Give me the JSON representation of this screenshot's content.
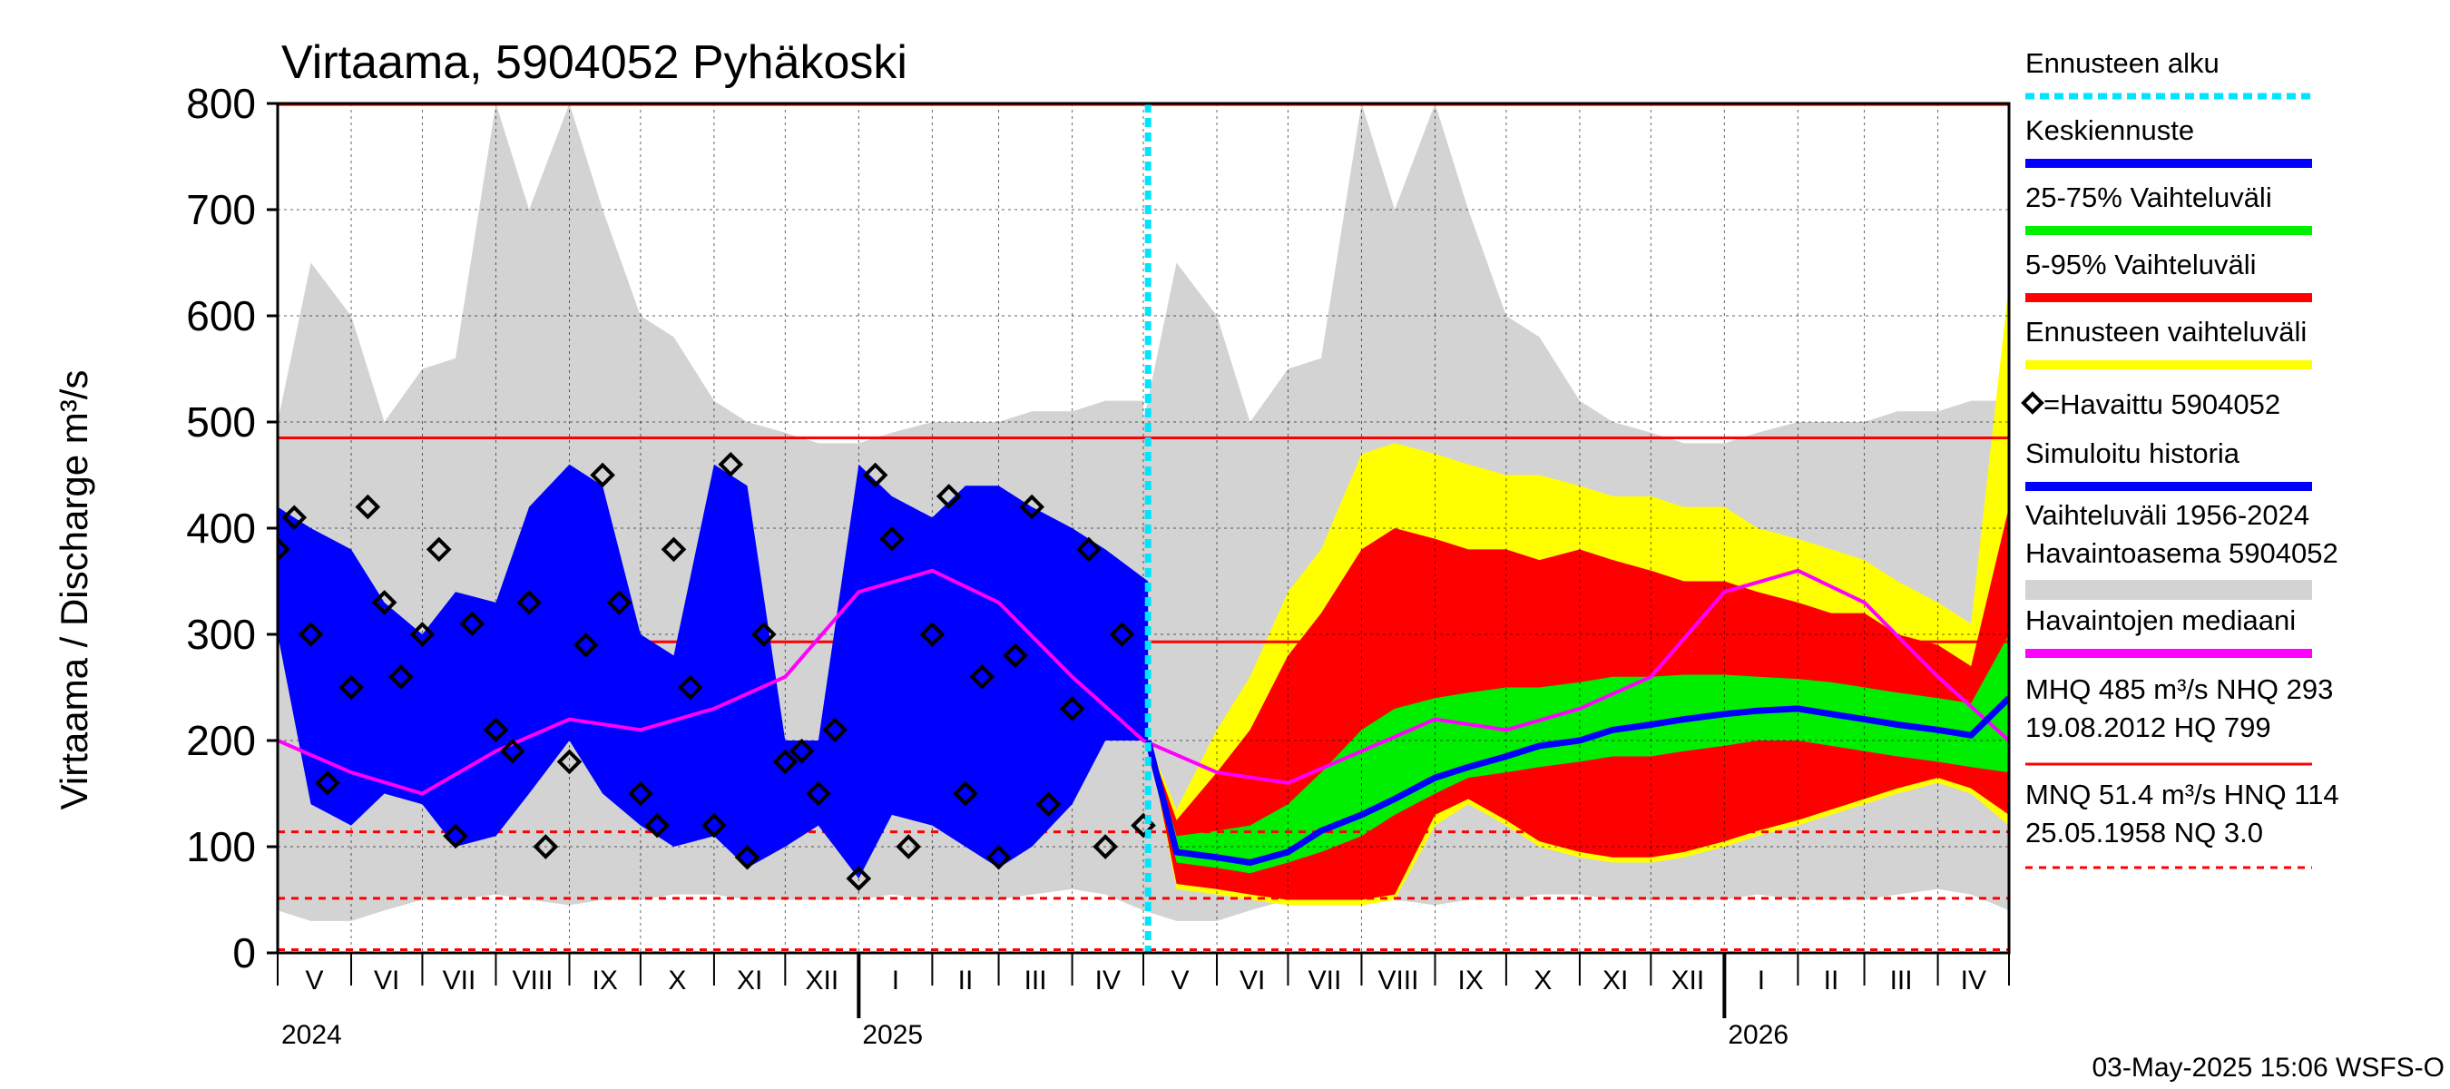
{
  "colors": {
    "history_band": "#d3d3d3",
    "forecast_range": "#ffff00",
    "p5_95": "#ff0000",
    "p25_75": "#00ee00",
    "mean_forecast": "#0000ff",
    "simulated": "#0000ff",
    "median": "#ff00ff",
    "forecast_start": "#00e5ff",
    "observed": "#000000",
    "ref_lines": "#ff0000"
  },
  "chart_data": {
    "type": "line",
    "title": "Virtaama, 5904052 Pyhäkoski",
    "ylabel": "Virtaama / Discharge    m³/s",
    "ylim": [
      0,
      800
    ],
    "yticks": [
      0,
      100,
      200,
      300,
      400,
      500,
      600,
      700,
      800
    ],
    "x_start": "2024-05-01",
    "x_end": "2026-05-01",
    "forecast_start": "2025-05-03",
    "month_labels": [
      "V",
      "VI",
      "VII",
      "VIII",
      "IX",
      "X",
      "XI",
      "XII",
      "I",
      "II",
      "III",
      "IV",
      "V",
      "VI",
      "VII",
      "VIII",
      "IX",
      "X",
      "XI",
      "XII",
      "I",
      "II",
      "III",
      "IV"
    ],
    "year_labels": [
      {
        "label": "2024",
        "date": "2024-05-01"
      },
      {
        "label": "2025",
        "date": "2025-01-01"
      },
      {
        "label": "2026",
        "date": "2026-01-01"
      }
    ],
    "reference_lines": [
      {
        "name": "HQ",
        "value": 799,
        "style": "solid"
      },
      {
        "name": "MHQ",
        "value": 485,
        "style": "solid"
      },
      {
        "name": "NHQ",
        "value": 293,
        "style": "solid"
      },
      {
        "name": "HNQ",
        "value": 114,
        "style": "dashed"
      },
      {
        "name": "MNQ",
        "value": 51.4,
        "style": "dashed"
      },
      {
        "name": "NQ",
        "value": 3.0,
        "style": "dashed"
      }
    ],
    "history_band": {
      "dates": [
        "2024-05-01",
        "2024-05-15",
        "2024-06-01",
        "2024-06-15",
        "2024-07-01",
        "2024-07-15",
        "2024-08-01",
        "2024-08-15",
        "2024-09-01",
        "2024-09-15",
        "2024-10-01",
        "2024-10-15",
        "2024-11-01",
        "2024-11-15",
        "2024-12-01",
        "2024-12-15",
        "2025-01-01",
        "2025-01-15",
        "2025-02-01",
        "2025-02-15",
        "2025-03-01",
        "2025-03-15",
        "2025-04-01",
        "2025-04-15",
        "2025-05-01"
      ],
      "low": [
        40,
        30,
        30,
        40,
        50,
        50,
        55,
        50,
        45,
        50,
        50,
        55,
        55,
        50,
        50,
        50,
        50,
        55,
        50,
        50,
        50,
        55,
        60,
        55,
        40
      ],
      "high": [
        500,
        650,
        600,
        500,
        550,
        560,
        800,
        700,
        800,
        700,
        600,
        580,
        520,
        500,
        490,
        480,
        480,
        490,
        500,
        500,
        500,
        510,
        510,
        520,
        520
      ]
    },
    "history_band_next": {
      "dates": [
        "2025-05-01",
        "2025-05-15",
        "2025-06-01",
        "2025-06-15",
        "2025-07-01",
        "2025-07-15",
        "2025-08-01",
        "2025-08-15",
        "2025-09-01",
        "2025-09-15",
        "2025-10-01",
        "2025-10-15",
        "2025-11-01",
        "2025-11-15",
        "2025-12-01",
        "2025-12-15",
        "2026-01-01",
        "2026-01-15",
        "2026-02-01",
        "2026-02-15",
        "2026-03-01",
        "2026-03-15",
        "2026-04-01",
        "2026-04-15",
        "2026-05-01"
      ],
      "low": [
        40,
        30,
        30,
        40,
        50,
        50,
        55,
        50,
        45,
        50,
        50,
        55,
        55,
        50,
        50,
        50,
        50,
        55,
        50,
        50,
        50,
        55,
        60,
        55,
        40
      ],
      "high": [
        500,
        650,
        600,
        500,
        550,
        560,
        800,
        700,
        800,
        700,
        600,
        580,
        520,
        500,
        490,
        480,
        480,
        490,
        500,
        500,
        500,
        510,
        510,
        520,
        520
      ]
    },
    "forecast": {
      "dates": [
        "2025-05-03",
        "2025-05-15",
        "2025-06-01",
        "2025-06-15",
        "2025-07-01",
        "2025-07-15",
        "2025-08-01",
        "2025-08-15",
        "2025-09-01",
        "2025-09-15",
        "2025-10-01",
        "2025-10-15",
        "2025-11-01",
        "2025-11-15",
        "2025-12-01",
        "2025-12-15",
        "2026-01-01",
        "2026-01-15",
        "2026-02-01",
        "2026-02-15",
        "2026-03-01",
        "2026-03-15",
        "2026-04-01",
        "2026-04-15",
        "2026-05-01"
      ],
      "range_low": [
        200,
        60,
        55,
        50,
        45,
        45,
        45,
        50,
        120,
        140,
        120,
        100,
        90,
        85,
        85,
        90,
        100,
        110,
        120,
        130,
        140,
        150,
        160,
        150,
        120
      ],
      "p5": [
        200,
        65,
        60,
        55,
        50,
        50,
        50,
        55,
        130,
        145,
        125,
        105,
        95,
        90,
        90,
        95,
        105,
        115,
        125,
        135,
        145,
        155,
        165,
        155,
        130
      ],
      "p25": [
        200,
        85,
        80,
        75,
        85,
        95,
        110,
        130,
        150,
        165,
        170,
        175,
        180,
        185,
        185,
        190,
        195,
        200,
        200,
        195,
        190,
        185,
        180,
        175,
        170
      ],
      "mean": [
        200,
        95,
        90,
        85,
        95,
        115,
        130,
        145,
        165,
        175,
        185,
        195,
        200,
        210,
        215,
        220,
        225,
        228,
        230,
        225,
        220,
        215,
        210,
        205,
        240
      ],
      "p75": [
        200,
        110,
        115,
        120,
        140,
        170,
        210,
        230,
        240,
        245,
        250,
        250,
        255,
        260,
        260,
        262,
        262,
        260,
        258,
        255,
        250,
        245,
        240,
        235,
        300
      ],
      "p95": [
        200,
        125,
        170,
        210,
        280,
        320,
        380,
        400,
        390,
        380,
        380,
        370,
        380,
        370,
        360,
        350,
        350,
        340,
        330,
        320,
        320,
        300,
        290,
        270,
        420
      ],
      "range_high": [
        200,
        135,
        210,
        260,
        340,
        380,
        470,
        480,
        470,
        460,
        450,
        450,
        440,
        430,
        430,
        420,
        420,
        400,
        390,
        380,
        370,
        350,
        330,
        310,
        630
      ]
    },
    "median": {
      "dates": [
        "2024-05-01",
        "2024-06-01",
        "2024-07-01",
        "2024-08-01",
        "2024-09-01",
        "2024-10-01",
        "2024-11-01",
        "2024-12-01",
        "2025-01-01",
        "2025-02-01",
        "2025-03-01",
        "2025-04-01",
        "2025-05-01",
        "2025-06-01",
        "2025-07-01",
        "2025-08-01",
        "2025-09-01",
        "2025-10-01",
        "2025-11-01",
        "2025-12-01",
        "2026-01-01",
        "2026-02-01",
        "2026-03-01",
        "2026-04-01",
        "2026-05-01"
      ],
      "values": [
        200,
        170,
        150,
        190,
        220,
        210,
        230,
        260,
        340,
        360,
        330,
        260,
        200,
        170,
        160,
        190,
        220,
        210,
        230,
        260,
        340,
        360,
        330,
        260,
        200
      ]
    },
    "simulated_history": {
      "dates": [
        "2024-05-01",
        "2024-05-15",
        "2024-06-01",
        "2024-06-15",
        "2024-07-01",
        "2024-07-15",
        "2024-08-01",
        "2024-08-15",
        "2024-09-01",
        "2024-09-15",
        "2024-10-01",
        "2024-10-15",
        "2024-11-01",
        "2024-11-15",
        "2024-12-01",
        "2024-12-15",
        "2025-01-01",
        "2025-01-15",
        "2025-02-01",
        "2025-02-15",
        "2025-03-01",
        "2025-03-15",
        "2025-04-01",
        "2025-04-15",
        "2025-05-03"
      ],
      "low": [
        300,
        140,
        120,
        150,
        140,
        100,
        110,
        150,
        200,
        150,
        120,
        100,
        110,
        80,
        100,
        120,
        70,
        130,
        120,
        100,
        80,
        100,
        140,
        200,
        200
      ],
      "high": [
        420,
        400,
        380,
        330,
        300,
        340,
        330,
        420,
        460,
        440,
        300,
        280,
        460,
        440,
        200,
        200,
        460,
        430,
        410,
        440,
        440,
        420,
        400,
        380,
        350
      ]
    },
    "observed": {
      "dates": [
        "2024-05-01",
        "2024-05-08",
        "2024-05-15",
        "2024-05-22",
        "2024-06-01",
        "2024-06-08",
        "2024-06-15",
        "2024-06-22",
        "2024-07-01",
        "2024-07-08",
        "2024-07-15",
        "2024-07-22",
        "2024-08-01",
        "2024-08-08",
        "2024-08-15",
        "2024-08-22",
        "2024-09-01",
        "2024-09-08",
        "2024-09-15",
        "2024-09-22",
        "2024-10-01",
        "2024-10-08",
        "2024-10-15",
        "2024-10-22",
        "2024-11-01",
        "2024-11-08",
        "2024-11-15",
        "2024-11-22",
        "2024-12-01",
        "2024-12-08",
        "2024-12-15",
        "2024-12-22",
        "2025-01-01",
        "2025-01-08",
        "2025-01-15",
        "2025-01-22",
        "2025-02-01",
        "2025-02-08",
        "2025-02-15",
        "2025-02-22",
        "2025-03-01",
        "2025-03-08",
        "2025-03-15",
        "2025-03-22",
        "2025-04-01",
        "2025-04-08",
        "2025-04-15",
        "2025-04-22",
        "2025-05-01"
      ],
      "values": [
        380,
        410,
        300,
        160,
        250,
        420,
        330,
        260,
        300,
        380,
        110,
        310,
        210,
        190,
        330,
        100,
        180,
        290,
        450,
        330,
        150,
        120,
        380,
        250,
        120,
        460,
        90,
        300,
        180,
        190,
        150,
        210,
        70,
        450,
        390,
        100,
        300,
        430,
        150,
        260,
        90,
        280,
        420,
        140,
        230,
        380,
        100,
        300,
        120
      ]
    }
  },
  "legend": {
    "items": [
      {
        "label": "Ennusteen alku",
        "color": "#00e5ff",
        "style": "dotted"
      },
      {
        "label": "Keskiennuste",
        "color": "#0000ff",
        "style": "solid"
      },
      {
        "label": "25-75% Vaihteluväli",
        "color": "#00ee00",
        "style": "solid"
      },
      {
        "label": "5-95% Vaihteluväli",
        "color": "#ff0000",
        "style": "solid"
      },
      {
        "label": "Ennusteen vaihteluväli",
        "color": "#ffff00",
        "style": "solid"
      },
      {
        "label": "=Havaittu 5904052",
        "color": "#000000",
        "style": "diamond"
      },
      {
        "label": "Simuloitu historia",
        "color": "#0000ff",
        "style": "solid"
      },
      {
        "label": "Vaihteluväli 1956-2024",
        "color": "",
        "style": "text"
      },
      {
        "label": " Havaintoasema 5904052",
        "color": "#d3d3d3",
        "style": "solid"
      },
      {
        "label": "Havaintojen mediaani",
        "color": "#ff00ff",
        "style": "solid"
      }
    ],
    "stats": [
      {
        "line1": "MHQ  485 m³/s NHQ  293",
        "line2": "19.08.2012 HQ  799",
        "color": "#ff0000",
        "style": "solid"
      },
      {
        "line1": "MNQ 51.4 m³/s HNQ  114",
        "line2": "25.05.1958 NQ  3.0",
        "color": "#ff0000",
        "style": "dashed"
      }
    ]
  },
  "footer": {
    "timestamp": "03-May-2025 15:06 WSFS-O"
  }
}
